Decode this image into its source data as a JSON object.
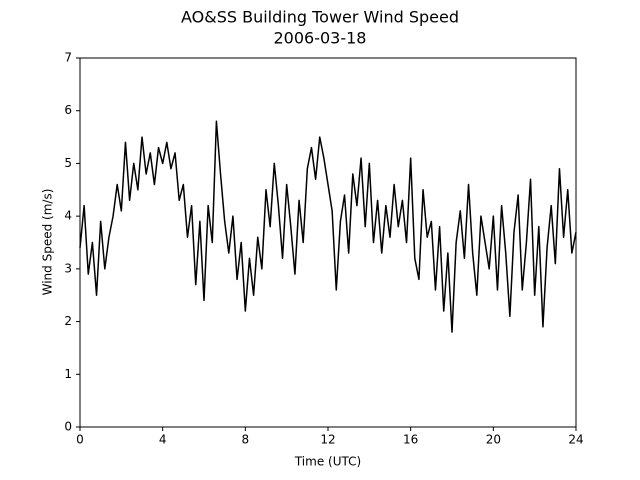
{
  "chart_data": {
    "type": "line",
    "title": "AO&SS Building Tower Wind Speed",
    "subtitle": "2006-03-18",
    "x_label": "Time (UTC)",
    "y_label": "Wind Speed (m/s)",
    "xlim": [
      0,
      24
    ],
    "xticks": [
      0,
      4,
      8,
      12,
      16,
      20,
      24
    ],
    "ylim": [
      0,
      7
    ],
    "yticks": [
      0,
      1,
      2,
      3,
      4,
      5,
      6,
      7
    ],
    "grid": false,
    "series": [
      {
        "color": "#000000",
        "x": [
          0,
          0.2,
          0.4,
          0.6,
          0.8,
          1.0,
          1.2,
          1.4,
          1.6,
          1.8,
          2.0,
          2.2,
          2.4,
          2.6,
          2.8,
          3.0,
          3.2,
          3.4,
          3.6,
          3.8,
          4.0,
          4.2,
          4.4,
          4.6,
          4.8,
          5.0,
          5.2,
          5.4,
          5.6,
          5.8,
          6.0,
          6.2,
          6.4,
          6.6,
          6.8,
          7.0,
          7.2,
          7.4,
          7.6,
          7.8,
          8.0,
          8.2,
          8.4,
          8.6,
          8.8,
          9.0,
          9.2,
          9.4,
          9.6,
          9.8,
          10.0,
          10.2,
          10.4,
          10.6,
          10.8,
          11.0,
          11.2,
          11.4,
          11.6,
          11.8,
          12.0,
          12.2,
          12.4,
          12.6,
          12.8,
          13.0,
          13.2,
          13.4,
          13.6,
          13.8,
          14.0,
          14.2,
          14.4,
          14.6,
          14.8,
          15.0,
          15.2,
          15.4,
          15.6,
          15.8,
          16.0,
          16.2,
          16.4,
          16.6,
          16.8,
          17.0,
          17.2,
          17.4,
          17.6,
          17.8,
          18.0,
          18.2,
          18.4,
          18.6,
          18.8,
          19.0,
          19.2,
          19.4,
          19.6,
          19.8,
          20.0,
          20.2,
          20.4,
          20.6,
          20.8,
          21.0,
          21.2,
          21.4,
          21.6,
          21.8,
          22.0,
          22.2,
          22.4,
          22.6,
          22.8,
          23.0,
          23.2,
          23.4,
          23.6,
          23.8,
          24.0
        ],
        "values": [
          3.4,
          4.2,
          2.9,
          3.5,
          2.5,
          3.9,
          3.0,
          3.6,
          4.0,
          4.6,
          4.1,
          5.4,
          4.3,
          5.0,
          4.5,
          5.5,
          4.8,
          5.2,
          4.6,
          5.3,
          5.0,
          5.4,
          4.9,
          5.2,
          4.3,
          4.6,
          3.6,
          4.2,
          2.7,
          3.9,
          2.4,
          4.2,
          3.5,
          5.8,
          4.8,
          3.9,
          3.3,
          4.0,
          2.8,
          3.5,
          2.2,
          3.2,
          2.5,
          3.6,
          3.0,
          4.5,
          3.8,
          5.0,
          4.2,
          3.2,
          4.6,
          3.8,
          2.9,
          4.3,
          3.5,
          4.9,
          5.3,
          4.7,
          5.5,
          5.1,
          4.6,
          4.1,
          2.6,
          3.9,
          4.4,
          3.3,
          4.8,
          4.2,
          5.1,
          3.8,
          5.0,
          3.5,
          4.3,
          3.3,
          4.2,
          3.6,
          4.6,
          3.8,
          4.3,
          3.5,
          5.1,
          3.2,
          2.8,
          4.5,
          3.6,
          3.9,
          2.6,
          3.8,
          2.2,
          3.3,
          1.8,
          3.5,
          4.1,
          3.2,
          4.6,
          3.3,
          2.5,
          4.0,
          3.5,
          3.0,
          4.0,
          2.6,
          4.2,
          3.3,
          2.1,
          3.7,
          4.4,
          2.6,
          3.5,
          4.7,
          2.5,
          3.8,
          1.9,
          3.4,
          4.2,
          3.1,
          4.9,
          3.6,
          4.5,
          3.3,
          3.7
        ]
      }
    ]
  }
}
